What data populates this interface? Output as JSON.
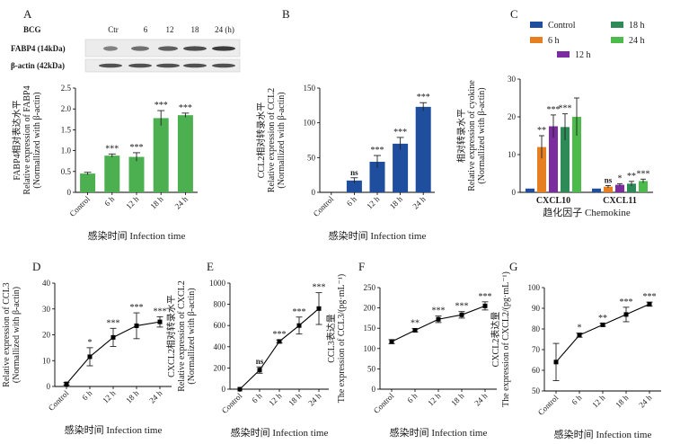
{
  "colors": {
    "green": "#4caf50",
    "blue": "#1f4e9e",
    "control": "#1f4e9e",
    "h6": "#e67e22",
    "h12": "#7b2c9e",
    "h18": "#2e8b57",
    "h24": "#4cbb4c"
  },
  "blot": {
    "stimulus": "BCG",
    "lanes": [
      "Ctr",
      "6",
      "12",
      "18",
      "24 (h)"
    ],
    "rows": [
      "FABP4 (14kDa)",
      "β-actin (42kDa)"
    ]
  },
  "chart_data": [
    {
      "panel": "A",
      "type": "bar",
      "categories": [
        "Control",
        "6 h",
        "12 h",
        "18 h",
        "24 h"
      ],
      "values": [
        0.45,
        0.88,
        0.85,
        1.78,
        1.85
      ],
      "errors": [
        0.03,
        0.04,
        0.1,
        0.18,
        0.05
      ],
      "significance": [
        "",
        "***",
        "***",
        "***",
        "***"
      ],
      "ylabel": [
        "FABP4相对表达水平",
        "Relative expression of FABP4",
        "(Normallized with β-actin)"
      ],
      "xlabel": "感染时间 Infection time",
      "ylim": [
        0,
        2.5
      ],
      "yticks": [
        "0",
        "0.5",
        "1.0",
        "1.5",
        "2.0",
        "2.5"
      ]
    },
    {
      "panel": "B",
      "type": "bar",
      "categories": [
        "Control",
        "6 h",
        "12 h",
        "18 h",
        "24 h"
      ],
      "values": [
        0,
        17,
        44,
        70,
        123
      ],
      "errors": [
        0,
        4,
        9,
        9,
        6
      ],
      "significance": [
        "",
        "ns",
        "***",
        "***",
        "***"
      ],
      "ylabel": [
        "CCL2相对转录水平",
        "Relative expression of CCL2",
        "(Normallized with β-actin)"
      ],
      "xlabel": "感染时间 Infection time",
      "ylim": [
        0,
        150
      ],
      "yticks": [
        "0",
        "50",
        "100",
        "150"
      ]
    },
    {
      "panel": "C",
      "type": "bar",
      "categories": [
        "CXCL10",
        "CXCL11"
      ],
      "series": [
        {
          "name": "Control",
          "values": [
            1.0,
            1.0
          ],
          "errors": [
            0,
            0
          ],
          "significance": [
            "",
            ""
          ]
        },
        {
          "name": "6 h",
          "values": [
            12.0,
            1.5
          ],
          "errors": [
            3.0,
            0.3
          ],
          "significance": [
            "**",
            "ns"
          ]
        },
        {
          "name": "12 h",
          "values": [
            17.5,
            2.0
          ],
          "errors": [
            3.0,
            0.3
          ],
          "significance": [
            "***",
            "*"
          ]
        },
        {
          "name": "18 h",
          "values": [
            17.3,
            2.3
          ],
          "errors": [
            3.5,
            0.6
          ],
          "significance": [
            "***",
            "**"
          ]
        },
        {
          "name": "24 h",
          "values": [
            20.0,
            3.0
          ],
          "errors": [
            5.0,
            0.5
          ],
          "significance": [
            "",
            "***"
          ]
        }
      ],
      "ylabel": [
        "相对转录水平",
        "Relative expression of cyokine",
        "(Normallized with β-actin)"
      ],
      "xlabel": "趋化因子 Chemokine",
      "ylim": [
        0,
        30
      ],
      "yticks": [
        "0",
        "10",
        "20",
        "30"
      ],
      "legend": "top"
    },
    {
      "panel": "D",
      "type": "line",
      "categories": [
        "Control",
        "6 h",
        "12 h",
        "18 h",
        "24 h"
      ],
      "values": [
        1,
        11.5,
        19,
        23.5,
        25
      ],
      "errors": [
        0.5,
        3.5,
        3.5,
        5,
        2
      ],
      "significance": [
        "",
        "*",
        "***",
        "***",
        "***"
      ],
      "ylabel": [
        "CCL3相对转录水平",
        "Relative expression of CCL3",
        "(Normallized with β-actin)"
      ],
      "xlabel": "感染时间 Infection time",
      "ylim": [
        0,
        40
      ],
      "yticks": [
        "0",
        "10",
        "20",
        "30",
        "40"
      ]
    },
    {
      "panel": "E",
      "type": "line",
      "categories": [
        "Control",
        "6 h",
        "12 h",
        "18 h",
        "24 h"
      ],
      "values": [
        0,
        180,
        450,
        600,
        760
      ],
      "errors": [
        0,
        30,
        15,
        80,
        150
      ],
      "significance": [
        "",
        "ns",
        "***",
        "***",
        "***"
      ],
      "ylabel": [
        "CXCL2相对转录水平",
        "Relative expression of CXCL2",
        "(Normallized with β-actin)"
      ],
      "xlabel": "感染时间 Infection time",
      "ylim": [
        0,
        1000
      ],
      "yticks": [
        "0",
        "200",
        "400",
        "600",
        "800",
        "1000"
      ]
    },
    {
      "panel": "F",
      "type": "line",
      "categories": [
        "Control",
        "6 h",
        "12 h",
        "18 h",
        "24 h"
      ],
      "values": [
        117,
        145,
        172,
        183,
        205
      ],
      "errors": [
        5,
        4,
        8,
        8,
        10
      ],
      "significance": [
        "",
        "**",
        "***",
        "***",
        "***"
      ],
      "ylabel": [
        "CCL3表达量",
        "The expression of CCL3/(pg·mL⁻¹)"
      ],
      "xlabel": "感染时间 Infection time",
      "ylim": [
        0,
        250
      ],
      "yticks": [
        "0",
        "50",
        "100",
        "150",
        "200",
        "250"
      ]
    },
    {
      "panel": "G",
      "type": "line",
      "categories": [
        "Control",
        "6 h",
        "12 h",
        "18 h",
        "24 h"
      ],
      "values": [
        64,
        77,
        82,
        87,
        92
      ],
      "errors": [
        9,
        1,
        0.7,
        3.5,
        1
      ],
      "significance": [
        "",
        "*",
        "**",
        "***",
        "***"
      ],
      "ylabel": [
        "CXCL2表达量",
        "The expression of CXCL2/(pg·mL⁻¹)"
      ],
      "xlabel": "感染时间 Infection time",
      "ylim": [
        50,
        100
      ],
      "yticks": [
        "50",
        "60",
        "70",
        "80",
        "90",
        "100"
      ]
    }
  ]
}
